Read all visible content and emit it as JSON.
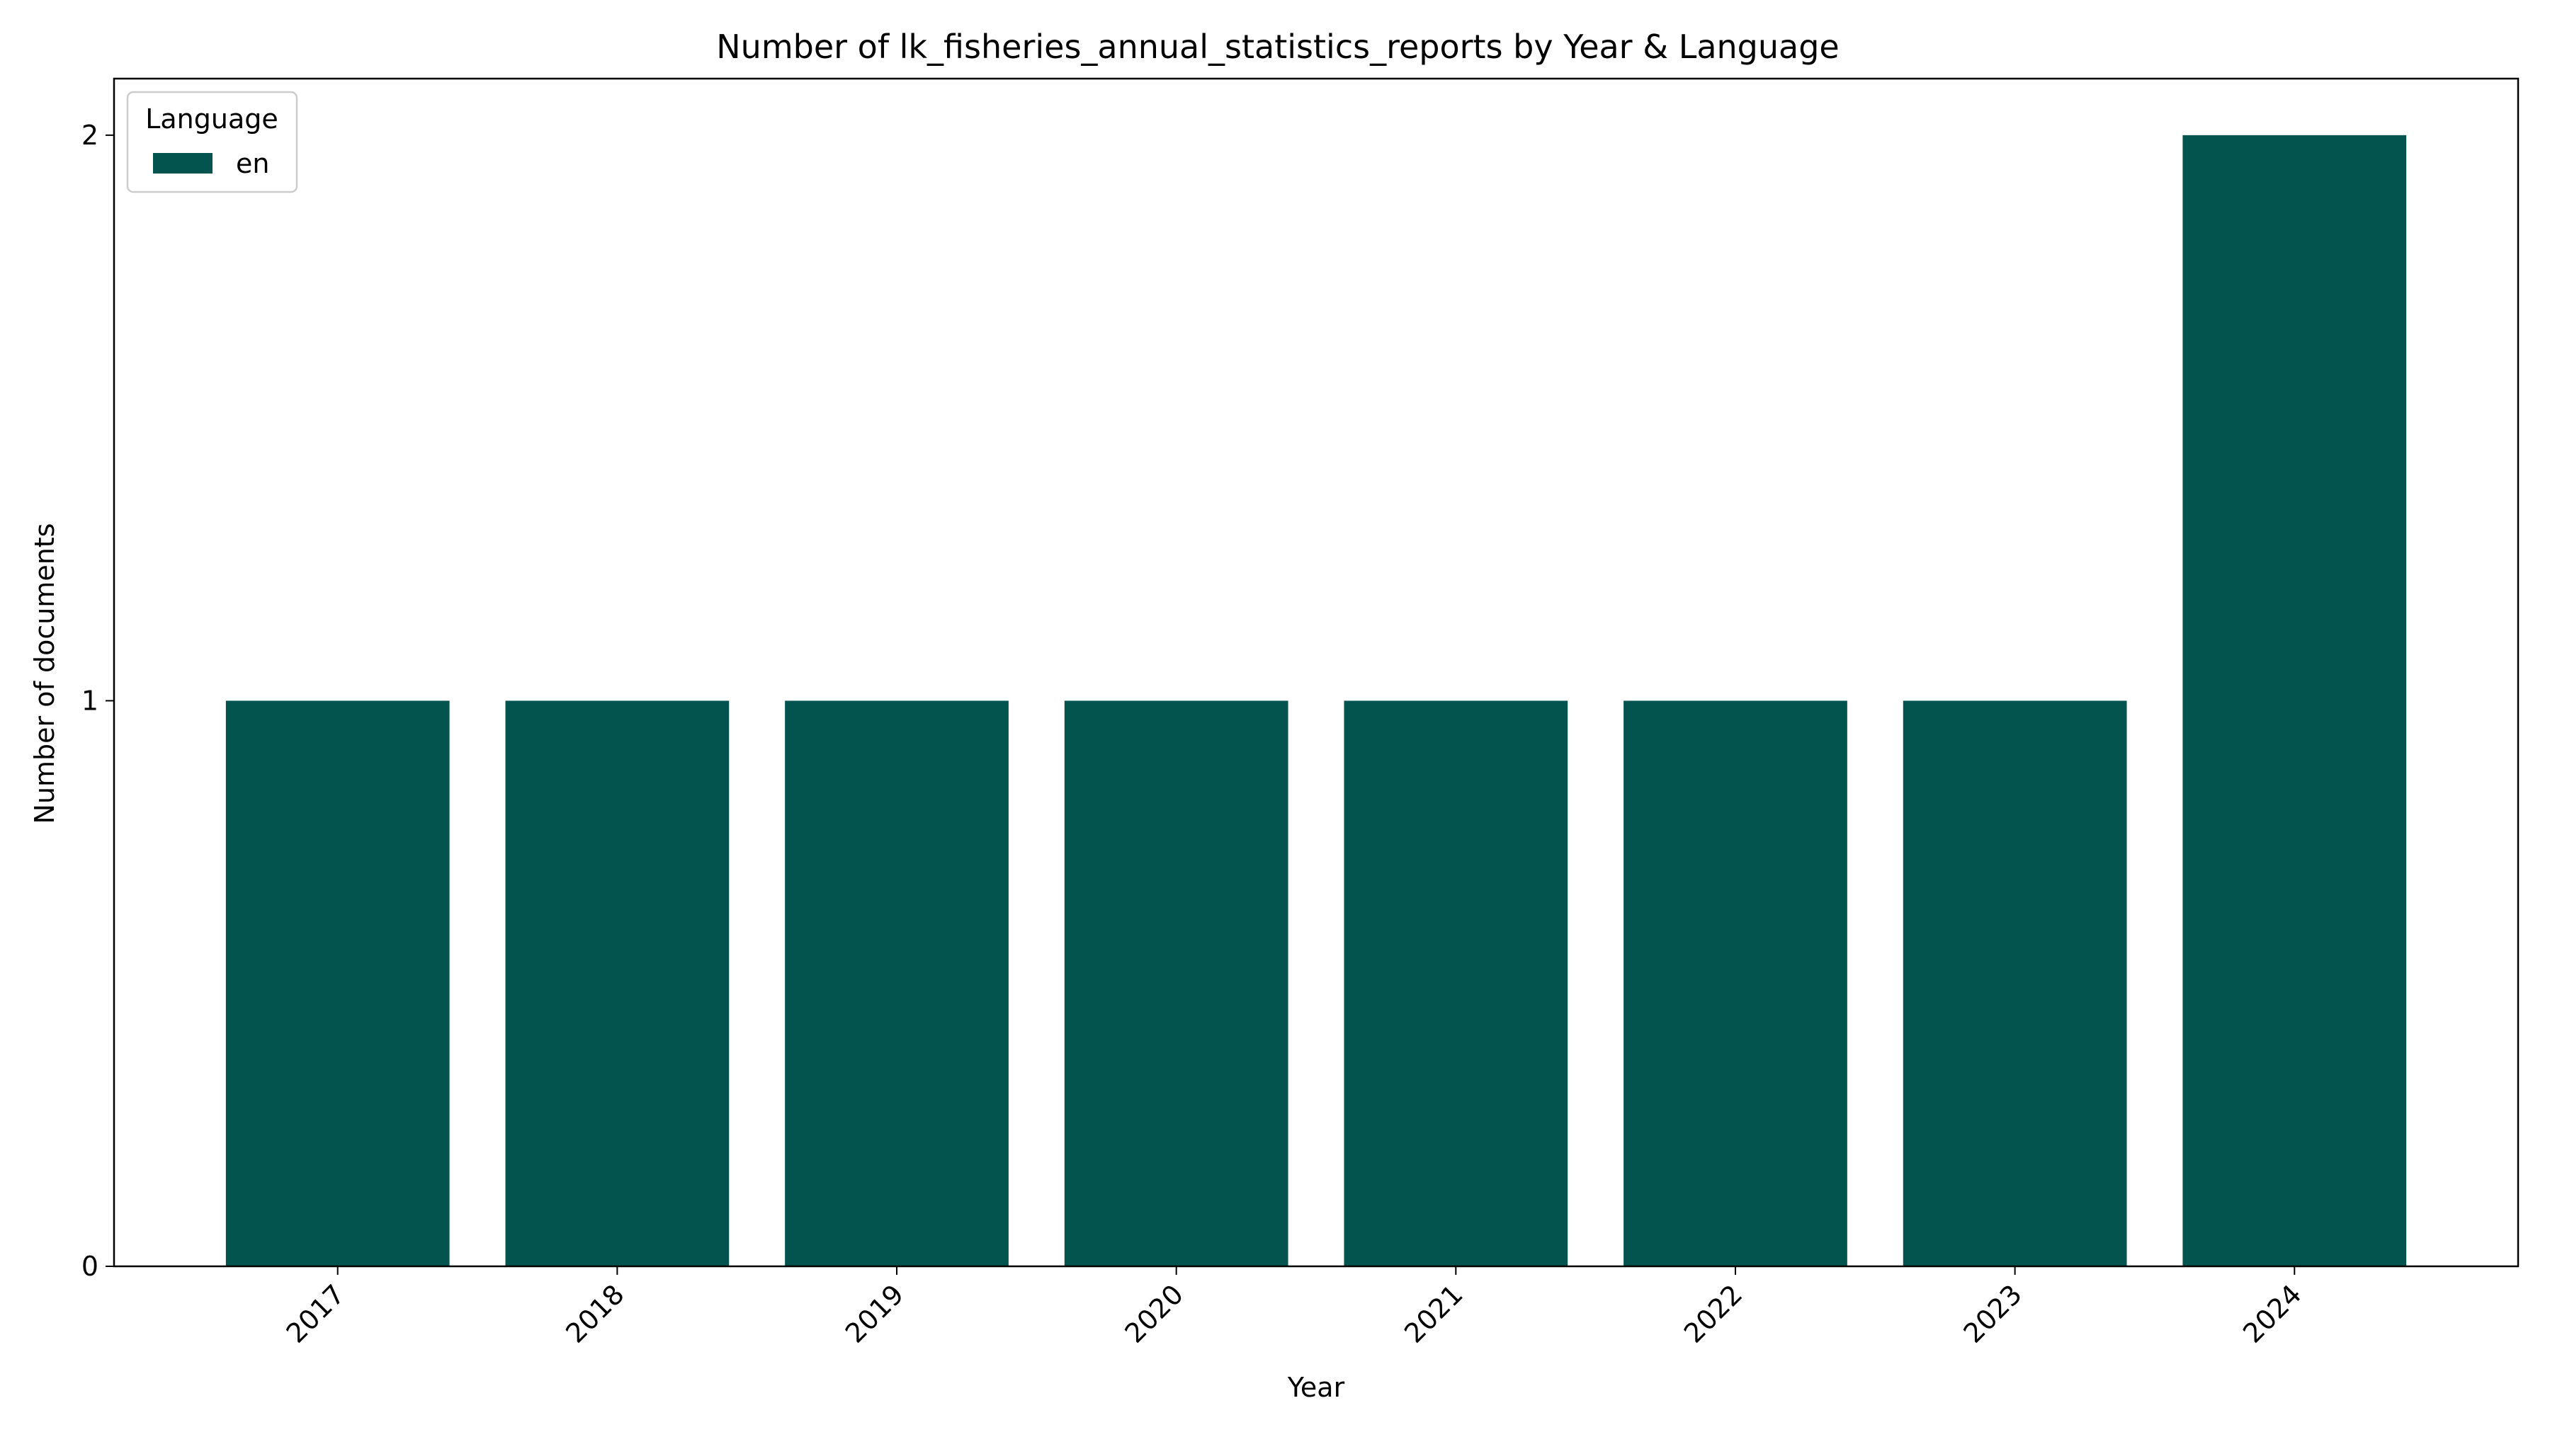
{
  "chart_data": {
    "type": "bar",
    "title": "Number of lk_fisheries_annual_statistics_reports by Year & Language",
    "xlabel": "Year",
    "ylabel": "Number of documents",
    "categories": [
      "2017",
      "2018",
      "2019",
      "2020",
      "2021",
      "2022",
      "2023",
      "2024"
    ],
    "series": [
      {
        "name": "en",
        "color": "#03534f",
        "values": [
          1,
          1,
          1,
          1,
          1,
          1,
          1,
          2
        ]
      }
    ],
    "ylim": [
      0,
      2.1
    ],
    "yticks": [
      0,
      1,
      2
    ],
    "grid": false,
    "legend": {
      "title": "Language",
      "placement": "top-left"
    },
    "xtick_rotation_deg": 45
  }
}
